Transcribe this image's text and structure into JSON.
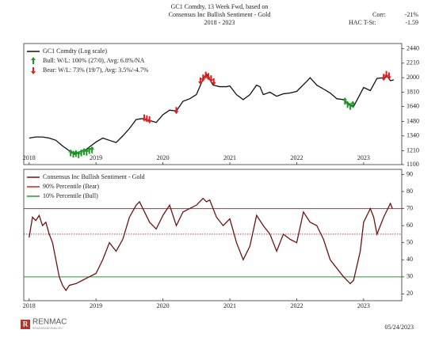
{
  "chart_data": [
    {
      "type": "line",
      "title": [
        "GC1 Comdty, 13 Week Fwd, based on",
        "Consensus Inc Bullish Sentiment - Gold",
        "2018 - 2023"
      ],
      "stats": [
        {
          "label": "Corr:",
          "value": "-21%"
        },
        {
          "label": "HAC T-St:",
          "value": "-1.59"
        }
      ],
      "log_scale": true,
      "xlim": [
        2017.92,
        2023.57
      ],
      "xticks": [
        2018,
        2019,
        2020,
        2021,
        2022,
        2023
      ],
      "ylim": [
        1100,
        2530
      ],
      "yticks": [
        1100,
        1210,
        1340,
        1480,
        1640,
        1810,
        2000,
        2210,
        2440
      ],
      "legend": "upper left",
      "series": [
        {
          "name": "GC1 Comdty (Log scale)",
          "color": "#111111",
          "style": "line",
          "x": [
            2018.0,
            2018.1,
            2018.2,
            2018.3,
            2018.4,
            2018.5,
            2018.6,
            2018.67,
            2018.75,
            2018.85,
            2019.0,
            2019.1,
            2019.2,
            2019.3,
            2019.4,
            2019.5,
            2019.6,
            2019.7,
            2019.8,
            2019.9,
            2020.0,
            2020.1,
            2020.2,
            2020.3,
            2020.4,
            2020.5,
            2020.6,
            2020.65,
            2020.75,
            2020.85,
            2020.95,
            2021.0,
            2021.1,
            2021.2,
            2021.3,
            2021.4,
            2021.45,
            2021.5,
            2021.6,
            2021.7,
            2021.8,
            2021.9,
            2022.0,
            2022.15,
            2022.2,
            2022.3,
            2022.4,
            2022.5,
            2022.6,
            2022.7,
            2022.8,
            2022.85,
            2022.95,
            2023.0,
            2023.1,
            2023.2,
            2023.3,
            2023.35,
            2023.4,
            2023.45
          ],
          "values": [
            1320,
            1330,
            1330,
            1320,
            1300,
            1250,
            1210,
            1180,
            1200,
            1220,
            1285,
            1320,
            1300,
            1280,
            1340,
            1410,
            1500,
            1510,
            1490,
            1470,
            1550,
            1600,
            1590,
            1700,
            1730,
            1780,
            1980,
            2050,
            1900,
            1880,
            1880,
            1890,
            1780,
            1720,
            1780,
            1900,
            1880,
            1780,
            1810,
            1760,
            1790,
            1800,
            1820,
            1950,
            2000,
            1900,
            1850,
            1800,
            1730,
            1720,
            1650,
            1640,
            1790,
            1870,
            1830,
            1990,
            2000,
            2020,
            1960,
            1970
          ]
        },
        {
          "name": "Bull: W/L: 100% (27/0), Avg: 6.8%/NA",
          "color": "#1f9a2a",
          "style": "arrow-up",
          "x": [
            2018.62,
            2018.66,
            2018.7,
            2018.74,
            2018.78,
            2018.82,
            2018.86,
            2018.9,
            2018.94,
            2022.72,
            2022.76,
            2022.8,
            2022.84
          ],
          "values": [
            1190,
            1180,
            1185,
            1175,
            1190,
            1200,
            1195,
            1210,
            1215,
            1700,
            1660,
            1640,
            1660
          ]
        },
        {
          "name": "Bear:  W/L: 73% (19/7), Avg: 3.5%/-4.7%",
          "color": "#e02020",
          "style": "arrow-down",
          "x": [
            2019.72,
            2019.76,
            2019.8,
            2020.2,
            2020.56,
            2020.6,
            2020.64,
            2020.68,
            2020.72,
            2020.76,
            2023.3,
            2023.34,
            2023.38
          ],
          "values": [
            1520,
            1510,
            1500,
            1600,
            1960,
            2000,
            2040,
            2020,
            1990,
            1950,
            2010,
            2050,
            2030
          ]
        }
      ]
    },
    {
      "type": "line",
      "xlim": [
        2017.92,
        2023.57
      ],
      "xticks": [
        2018,
        2019,
        2020,
        2021,
        2022,
        2023
      ],
      "ylim": [
        16,
        93
      ],
      "yticks": [
        20,
        30,
        40,
        50,
        60,
        70,
        80,
        90
      ],
      "legend": "upper left",
      "series": [
        {
          "name": "Consensus Inc Bullish Sentiment - Gold",
          "color": "#6e1414",
          "style": "line",
          "x": [
            2018.0,
            2018.05,
            2018.1,
            2018.15,
            2018.2,
            2018.25,
            2018.3,
            2018.35,
            2018.4,
            2018.45,
            2018.5,
            2018.55,
            2018.6,
            2018.7,
            2018.8,
            2018.9,
            2019.0,
            2019.1,
            2019.2,
            2019.3,
            2019.4,
            2019.5,
            2019.6,
            2019.65,
            2019.7,
            2019.8,
            2019.9,
            2020.0,
            2020.1,
            2020.2,
            2020.3,
            2020.4,
            2020.5,
            2020.6,
            2020.65,
            2020.7,
            2020.8,
            2020.9,
            2021.0,
            2021.1,
            2021.2,
            2021.3,
            2021.4,
            2021.5,
            2021.6,
            2021.7,
            2021.8,
            2021.9,
            2022.0,
            2022.1,
            2022.2,
            2022.3,
            2022.4,
            2022.5,
            2022.6,
            2022.7,
            2022.8,
            2022.85,
            2022.95,
            2023.0,
            2023.1,
            2023.15,
            2023.2,
            2023.3,
            2023.4,
            2023.43
          ],
          "values": [
            53,
            65,
            63,
            66,
            60,
            62,
            55,
            50,
            40,
            30,
            25,
            22,
            25,
            26,
            28,
            30,
            32,
            40,
            50,
            45,
            52,
            65,
            72,
            74,
            70,
            62,
            58,
            66,
            72,
            60,
            68,
            70,
            72,
            76,
            74,
            75,
            65,
            60,
            64,
            50,
            40,
            48,
            66,
            60,
            55,
            45,
            55,
            52,
            50,
            68,
            62,
            60,
            52,
            40,
            35,
            30,
            26,
            28,
            45,
            62,
            70,
            65,
            55,
            65,
            73,
            70
          ]
        }
      ],
      "hlines": [
        {
          "name": "90% Percentile (Bear)",
          "value": 70,
          "color": "#d42020",
          "dash": false
        },
        {
          "name": "10% Percentile (Bull)",
          "value": 30,
          "color": "#1f9a2a",
          "dash": false
        },
        {
          "value": 55,
          "color": "#a03030",
          "dash": true
        }
      ]
    }
  ],
  "footer": {
    "brand": "RENMAC",
    "tagline": "RENAISSANCEMACRO",
    "date": "05/24/2023"
  }
}
